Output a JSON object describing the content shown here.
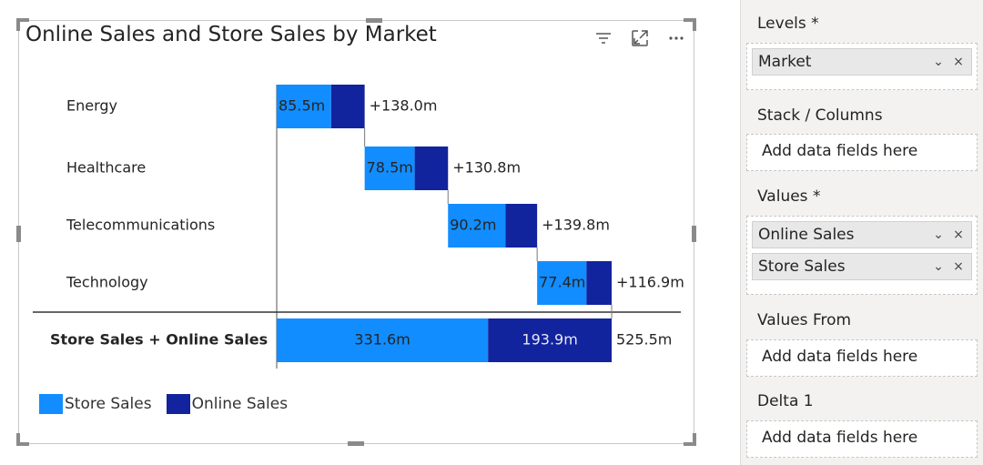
{
  "chart_data": {
    "type": "bar",
    "subtype": "stacked-waterfall",
    "title": "Online Sales and Store Sales by Market",
    "categories": [
      "Energy",
      "Healthcare",
      "Telecommunications",
      "Technology"
    ],
    "series": [
      {
        "name": "Store Sales",
        "values": [
          85.5,
          78.5,
          90.2,
          77.4
        ],
        "labels": [
          "85.5m",
          "78.5m",
          "90.2m",
          "77.4m"
        ],
        "color": "#118DFF"
      },
      {
        "name": "Online Sales",
        "values": [
          52.5,
          52.3,
          49.6,
          39.5
        ],
        "color": "#12239E"
      }
    ],
    "delta_labels": [
      "+138.0m",
      "+130.8m",
      "+139.8m",
      "+116.9m"
    ],
    "total": {
      "label": "Store Sales + Online Sales",
      "store_sales": 331.6,
      "store_sales_label": "331.6m",
      "online_sales": 193.9,
      "online_sales_label": "193.9m",
      "value": 525.5,
      "value_label": "525.5m"
    },
    "legend": [
      "Store Sales",
      "Online Sales"
    ],
    "legend_position": "bottom-left",
    "xlim": [
      0,
      525.5
    ],
    "grid": false
  },
  "panel": {
    "wells": [
      {
        "label": "Levels *",
        "items": [
          "Market"
        ]
      },
      {
        "label": "Stack / Columns",
        "placeholder": "Add data fields here"
      },
      {
        "label": "Values *",
        "items": [
          "Online Sales",
          "Store Sales"
        ]
      },
      {
        "label": "Values From",
        "placeholder": "Add data fields here"
      },
      {
        "label": "Delta 1",
        "placeholder": "Add data fields here"
      }
    ],
    "pill_icons": {
      "expand": "chevron-down-icon",
      "remove": "close-icon"
    }
  },
  "toolbar": {
    "icons": [
      "filter-icon",
      "focus-mode-icon",
      "more-options-icon"
    ]
  }
}
